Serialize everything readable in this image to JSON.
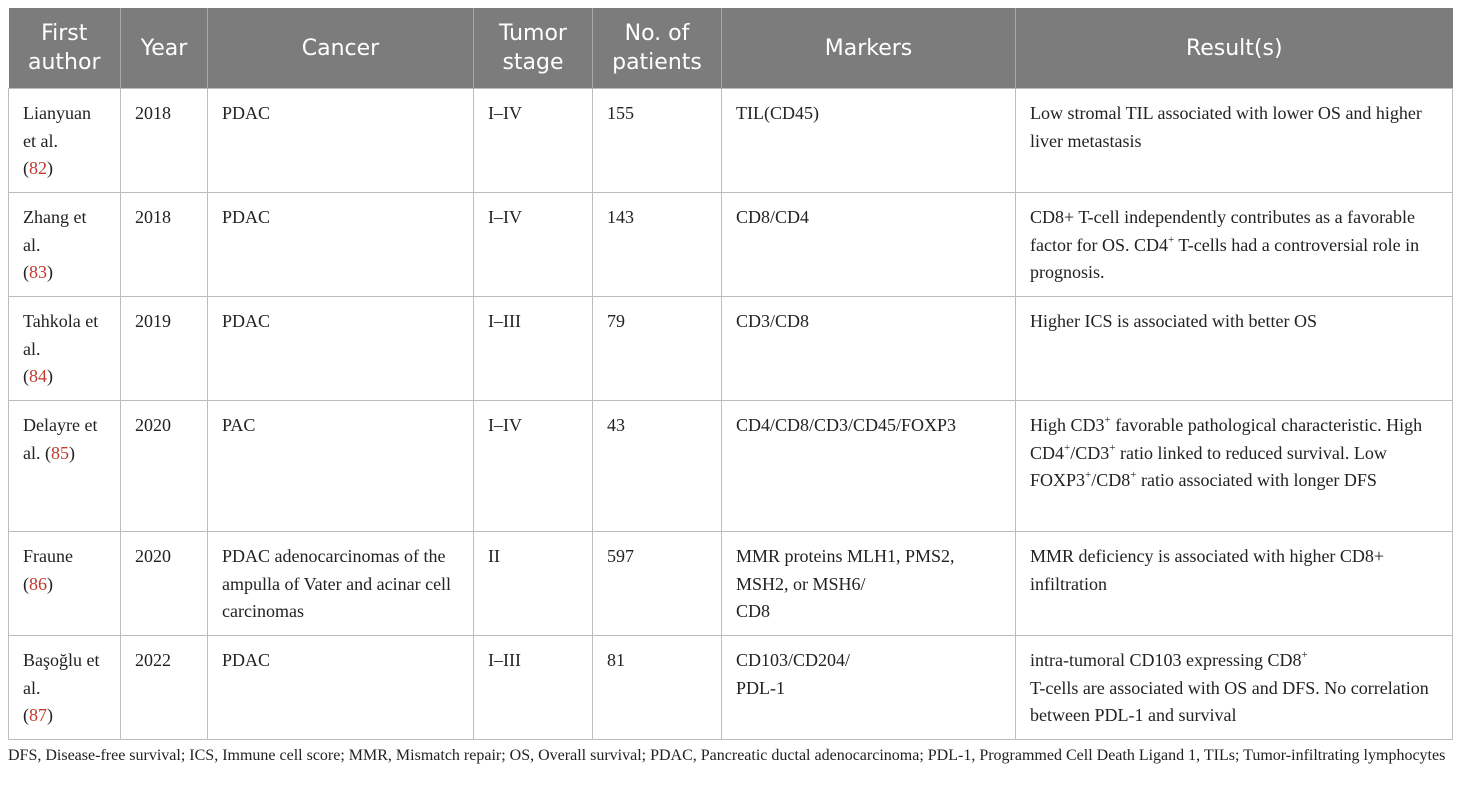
{
  "headers": [
    "First author",
    "Year",
    "Cancer",
    "Tumor stage",
    "No. of patients",
    "Markers",
    "Result(s)"
  ],
  "rows": [
    {
      "author_name": "Lianyuan et al.",
      "ref": "82",
      "year": "2018",
      "cancer": "PDAC",
      "stage": "I–IV",
      "patients": "155",
      "markers": "TIL(CD45)",
      "result": "Low stromal TIL associated with lower OS and higher liver metastasis"
    },
    {
      "author_name": "Zhang et al.",
      "ref": "83",
      "year": "2018",
      "cancer": "PDAC",
      "stage": "I–IV",
      "patients": "143",
      "markers": "CD8/CD4",
      "result_parts": [
        "CD8+ T-cell independently contributes as a favorable factor for OS. CD4",
        "+",
        " T-cells had a controversial role in prognosis."
      ]
    },
    {
      "author_name": "Tahkola et al.",
      "ref": "84",
      "year": "2019",
      "cancer": "PDAC",
      "stage": "I–III",
      "patients": "79",
      "markers": "CD3/CD8",
      "result": "Higher ICS is associated with better OS"
    },
    {
      "author_name": "Delayre et al.",
      "ref": "85",
      "year": "2020",
      "cancer": "PAC",
      "stage": "I–IV",
      "patients": "43",
      "markers": "CD4/CD8/CD3/CD45/FOXP3",
      "result_parts": [
        "High CD3",
        "+",
        " favorable pathological characteristic. High CD4",
        "+",
        "/CD3",
        "+",
        " ratio linked to reduced survival. Low FOXP3",
        "+",
        "/CD8",
        "+",
        " ratio associated with longer DFS"
      ]
    },
    {
      "author_name": "Fraune",
      "ref": "86",
      "year": "2020",
      "cancer": "PDAC adenocarcinomas of the ampulla of Vater and acinar cell carcinomas",
      "stage": "II",
      "patients": "597",
      "markers_lines": [
        "MMR proteins MLH1, PMS2, MSH2, or MSH6/",
        "CD8"
      ],
      "result": "MMR deficiency is associated with higher CD8+ infiltration"
    },
    {
      "author_name": "Başoğlu et al.",
      "ref": "87",
      "year": "2022",
      "cancer": "PDAC",
      "stage": "I–III",
      "patients": "81",
      "markers_lines": [
        "CD103/CD204/",
        "PDL-1"
      ],
      "result_parts": [
        "intra-tumoral CD103 expressing CD8",
        "+",
        " T-cells are associated with OS and DFS. No correlation between PDL-1 and survival"
      ]
    }
  ],
  "footnote": "DFS, Disease-free survival; ICS, Immune cell score; MMR, Mismatch repair; OS, Overall survival; PDAC, Pancreatic ductal adenocarcinoma; PDL-1, Programmed Cell Death Ligand 1, TILs; Tumor-infiltrating lymphocytes"
}
